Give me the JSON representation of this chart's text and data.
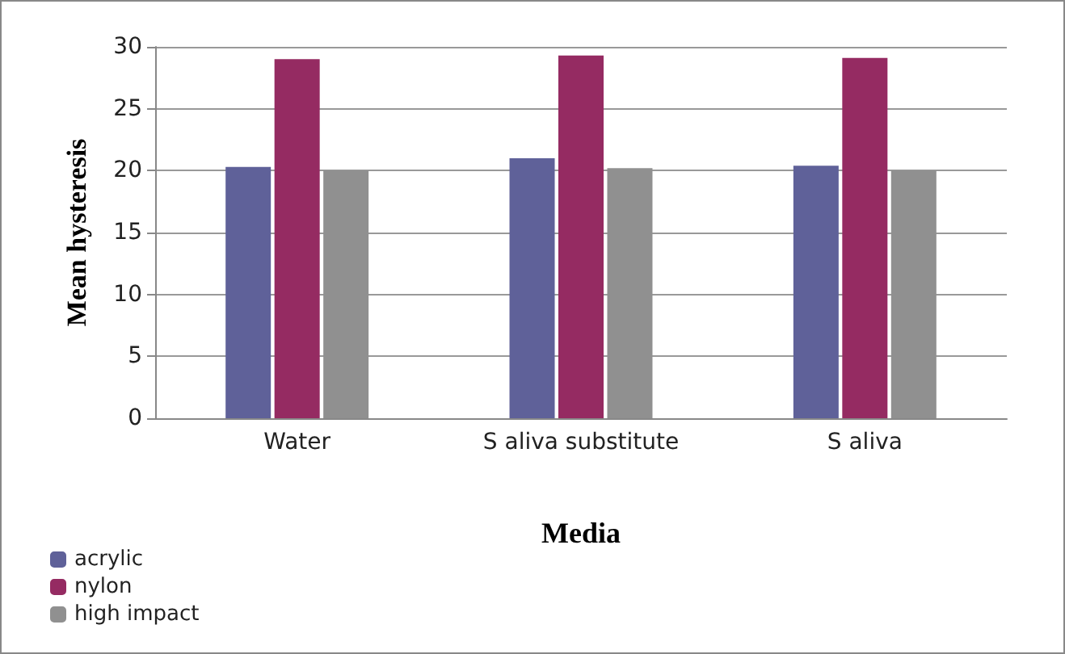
{
  "chart_data": {
    "type": "bar",
    "xlabel": "Media",
    "ylabel": "Mean hysteresis",
    "categories": [
      "Water",
      "S aliva substitute",
      "S aliva"
    ],
    "series": [
      {
        "name": "acrylic",
        "color": "#5f6199",
        "values": [
          20.3,
          21,
          20.4
        ]
      },
      {
        "name": "nylon",
        "color": "#952b62",
        "values": [
          29,
          29.3,
          29.1
        ]
      },
      {
        "name": "high impact",
        "color": "#909090",
        "values": [
          20,
          20.2,
          20
        ]
      }
    ],
    "ylim": [
      0,
      30
    ],
    "yticks": [
      0,
      5,
      10,
      15,
      20,
      25,
      30
    ],
    "grid": "y",
    "legend": "bottom left"
  }
}
